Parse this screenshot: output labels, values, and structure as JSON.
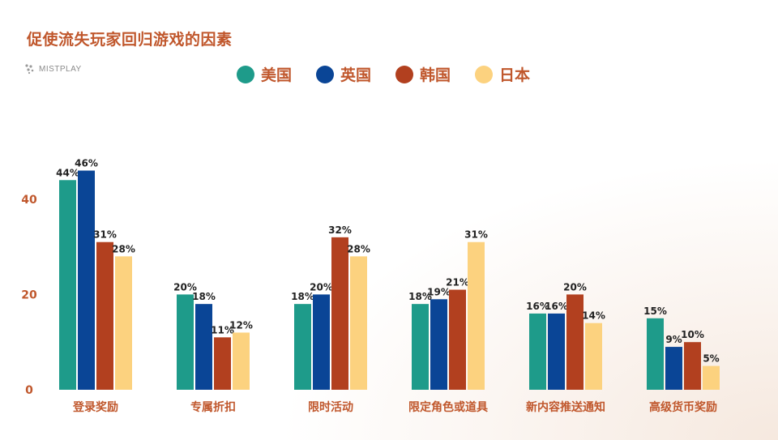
{
  "title": "促使流失玩家回归游戏的因素",
  "brand": {
    "name": "MISTPLAY",
    "icon": "mistplay-logo-icon"
  },
  "chart_data": {
    "type": "bar",
    "title": "促使流失玩家回归游戏的因素",
    "categories": [
      "登录奖励",
      "专属折扣",
      "限时活动",
      "限定角色或道具",
      "新内容推送通知",
      "高级货币奖励"
    ],
    "series": [
      {
        "name": "美国",
        "color": "#1e9b8a",
        "values": [
          44,
          20,
          18,
          18,
          16,
          15
        ]
      },
      {
        "name": "英国",
        "color": "#0a4596",
        "values": [
          46,
          18,
          20,
          19,
          16,
          9
        ]
      },
      {
        "name": "韩国",
        "color": "#b2401f",
        "values": [
          31,
          11,
          32,
          21,
          20,
          10
        ]
      },
      {
        "name": "日本",
        "color": "#fcd27f",
        "values": [
          28,
          12,
          28,
          31,
          14,
          5
        ]
      }
    ],
    "value_suffix": "%",
    "yticks": [
      0,
      20,
      40
    ],
    "ylim": [
      0,
      52
    ],
    "grid": false,
    "legend_position": "top-center"
  }
}
